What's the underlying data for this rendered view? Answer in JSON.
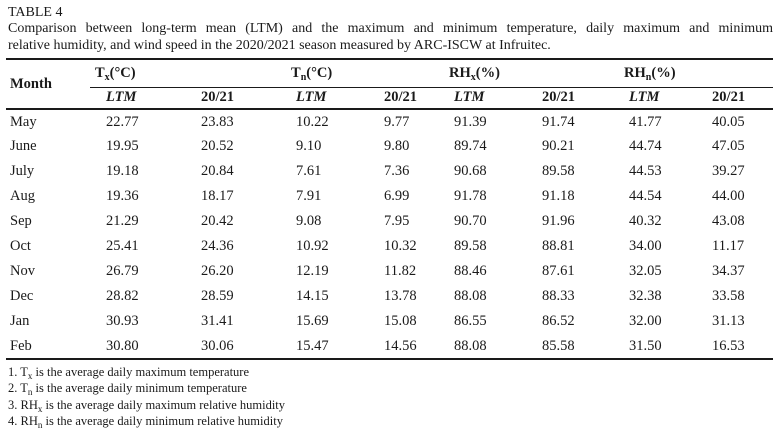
{
  "title": "TABLE 4",
  "caption": {
    "line1": "Comparison between long-term mean (LTM) and the maximum and minimum temperature, daily maximum and minimum",
    "line2": "relative humidity, and wind speed in the 2020/2021 season measured by ARC-ISCW at Infruitec."
  },
  "table": {
    "month_header": "Month",
    "groups": [
      {
        "base": "T",
        "sub": "x",
        "unit": "(°C)"
      },
      {
        "base": "T",
        "sub": "n",
        "unit": "(°C)"
      },
      {
        "base": "RH",
        "sub": "x",
        "unit": "(%)"
      },
      {
        "base": "RH",
        "sub": "n",
        "unit": "(%)"
      }
    ],
    "sub_headers": {
      "ltm": "LTM",
      "season": "20/21"
    },
    "rows": [
      {
        "month": "May",
        "values": [
          "22.77",
          "23.83",
          "10.22",
          "9.77",
          "91.39",
          "91.74",
          "41.77",
          "40.05"
        ]
      },
      {
        "month": "June",
        "values": [
          "19.95",
          "20.52",
          "9.10",
          "9.80",
          "89.74",
          "90.21",
          "44.74",
          "47.05"
        ]
      },
      {
        "month": "July",
        "values": [
          "19.18",
          "20.84",
          "7.61",
          "7.36",
          "90.68",
          "89.58",
          "44.53",
          "39.27"
        ]
      },
      {
        "month": "Aug",
        "values": [
          "19.36",
          "18.17",
          "7.91",
          "6.99",
          "91.78",
          "91.18",
          "44.54",
          "44.00"
        ]
      },
      {
        "month": "Sep",
        "values": [
          "21.29",
          "20.42",
          "9.08",
          "7.95",
          "90.70",
          "91.96",
          "40.32",
          "43.08"
        ]
      },
      {
        "month": "Oct",
        "values": [
          "25.41",
          "24.36",
          "10.92",
          "10.32",
          "89.58",
          "88.81",
          "34.00",
          "11.17"
        ]
      },
      {
        "month": "Nov",
        "values": [
          "26.79",
          "26.20",
          "12.19",
          "11.82",
          "88.46",
          "87.61",
          "32.05",
          "34.37"
        ]
      },
      {
        "month": "Dec",
        "values": [
          "28.82",
          "28.59",
          "14.15",
          "13.78",
          "88.08",
          "88.33",
          "32.38",
          "33.58"
        ]
      },
      {
        "month": "Jan",
        "values": [
          "30.93",
          "31.41",
          "15.69",
          "15.08",
          "86.55",
          "86.52",
          "32.00",
          "31.13"
        ]
      },
      {
        "month": "Feb",
        "values": [
          "30.80",
          "30.06",
          "15.47",
          "14.56",
          "88.08",
          "85.58",
          "31.50",
          "16.53"
        ]
      }
    ]
  },
  "footnotes": [
    {
      "prefix": "1. T",
      "sub": "x",
      "text": " is the average daily maximum temperature"
    },
    {
      "prefix": "2. T",
      "sub": "n",
      "text": " is the average daily minimum temperature"
    },
    {
      "prefix": "3. RH",
      "sub": "x",
      "text": " is the average daily maximum relative humidity"
    },
    {
      "prefix": "4. RH",
      "sub": "n",
      "text": " is the average daily minimum relative humidity"
    }
  ],
  "colors": {
    "text": "#1a1a1a",
    "rule": "#1a1a1a",
    "background": "#ffffff"
  }
}
